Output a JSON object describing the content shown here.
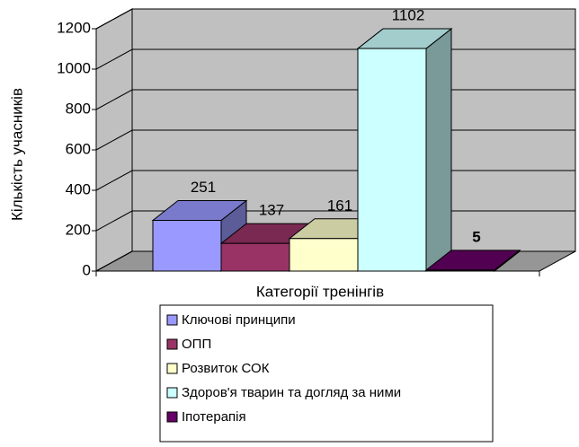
{
  "chart_data": {
    "type": "bar3d",
    "y_label": "Кількість учасників",
    "x_label": "Категорії тренінгів",
    "series": [
      {
        "name": "Ключові принципи",
        "color": "#9999ff",
        "values": [
          251
        ]
      },
      {
        "name": "ОПП",
        "color": "#993366",
        "values": [
          137
        ]
      },
      {
        "name": "Розвиток СОК",
        "color": "#ffffcc",
        "values": [
          161
        ]
      },
      {
        "name": "Здоров'я тварин та догляд за ними",
        "color": "#ccffff",
        "values": [
          1102
        ]
      },
      {
        "name": "Іпотерапія",
        "color": "#660066",
        "values": [
          5
        ],
        "label_bold": true
      }
    ],
    "ylim": [
      0,
      1200
    ],
    "yticks": [
      0,
      200,
      400,
      600,
      800,
      1000,
      1200
    ],
    "grid": true
  }
}
